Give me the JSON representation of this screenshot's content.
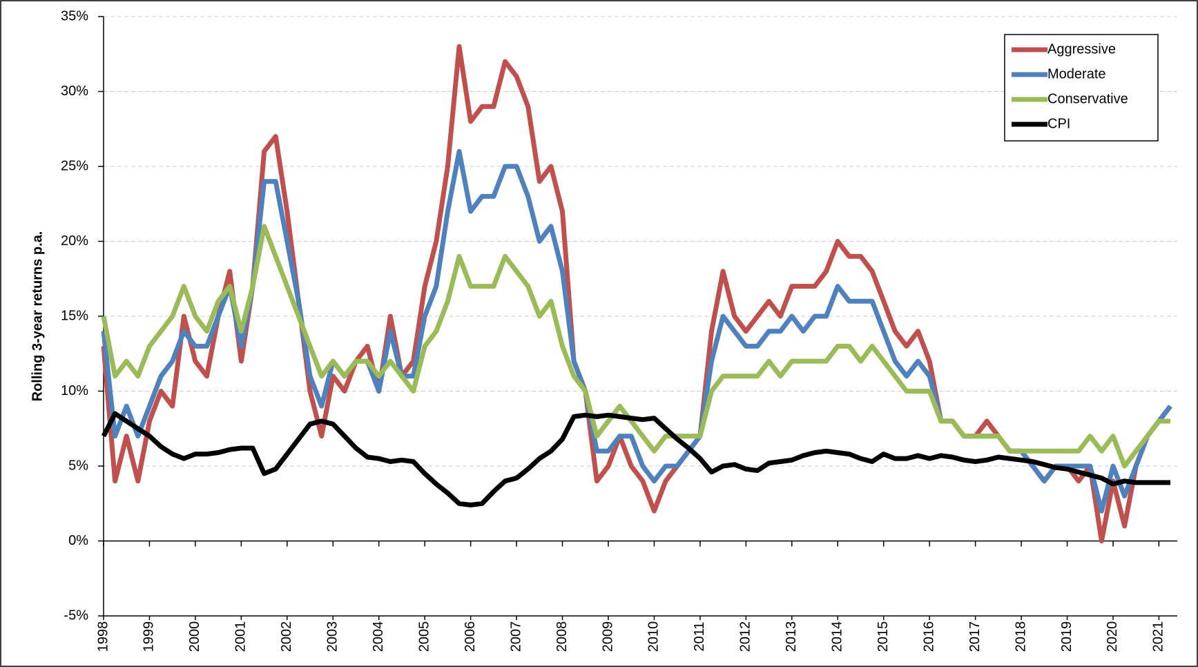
{
  "chart_data": {
    "type": "line",
    "y_label": "Rolling 3-year returns p.a.",
    "ylim": [
      -5,
      35
    ],
    "yticks": [
      {
        "value": -5,
        "label": "-5%"
      },
      {
        "value": 0,
        "label": "0%"
      },
      {
        "value": 5,
        "label": "5%"
      },
      {
        "value": 10,
        "label": "10%"
      },
      {
        "value": 15,
        "label": "15%"
      },
      {
        "value": 20,
        "label": "20%"
      },
      {
        "value": 25,
        "label": "25%"
      },
      {
        "value": 30,
        "label": "30%"
      },
      {
        "value": 35,
        "label": "35%"
      }
    ],
    "xlim": [
      1998,
      2021.4
    ],
    "xticks": [
      1998,
      1999,
      2000,
      2001,
      2002,
      2003,
      2004,
      2005,
      2006,
      2007,
      2008,
      2009,
      2010,
      2011,
      2012,
      2013,
      2014,
      2015,
      2016,
      2017,
      2018,
      2019,
      2020,
      2021
    ],
    "grid": true,
    "legend": "top-right",
    "x": [
      1998,
      1998.25,
      1998.5,
      1998.75,
      1999,
      1999.25,
      1999.5,
      1999.75,
      2000,
      2000.25,
      2000.5,
      2000.75,
      2001,
      2001.25,
      2001.5,
      2001.75,
      2002,
      2002.25,
      2002.5,
      2002.75,
      2003,
      2003.25,
      2003.5,
      2003.75,
      2004,
      2004.25,
      2004.5,
      2004.75,
      2005,
      2005.25,
      2005.5,
      2005.75,
      2006,
      2006.25,
      2006.5,
      2006.75,
      2007,
      2007.25,
      2007.5,
      2007.75,
      2008,
      2008.25,
      2008.5,
      2008.75,
      2009,
      2009.25,
      2009.5,
      2009.75,
      2010,
      2010.25,
      2010.5,
      2010.75,
      2011,
      2011.25,
      2011.5,
      2011.75,
      2012,
      2012.25,
      2012.5,
      2012.75,
      2013,
      2013.25,
      2013.5,
      2013.75,
      2014,
      2014.25,
      2014.5,
      2014.75,
      2015,
      2015.25,
      2015.5,
      2015.75,
      2016,
      2016.25,
      2016.5,
      2016.75,
      2017,
      2017.25,
      2017.5,
      2017.75,
      2018,
      2018.25,
      2018.5,
      2018.75,
      2019,
      2019.25,
      2019.5,
      2019.75,
      2020,
      2020.25,
      2020.5,
      2020.75,
      2021,
      2021.25
    ],
    "series": [
      {
        "name": "Aggressive",
        "color": "#c0504d",
        "values": [
          13,
          4,
          7,
          4,
          8,
          10,
          9,
          15,
          12,
          11,
          15,
          18,
          12,
          17,
          26,
          27,
          22,
          16,
          10,
          7,
          11,
          10,
          12,
          13,
          10,
          15,
          11,
          12,
          17,
          20,
          25,
          33,
          28,
          29,
          29,
          32,
          31,
          29,
          24,
          25,
          22,
          12,
          10,
          4,
          5,
          7,
          5,
          4,
          2,
          4,
          5,
          6,
          7,
          14,
          18,
          15,
          14,
          15,
          16,
          15,
          17,
          17,
          17,
          18,
          20,
          19,
          19,
          18,
          16,
          14,
          13,
          14,
          12,
          8,
          8,
          7,
          7,
          8,
          7,
          6,
          6,
          5,
          4,
          5,
          5,
          4,
          5,
          0,
          4,
          1,
          5,
          7,
          8,
          9
        ]
      },
      {
        "name": "Moderate",
        "color": "#4f81bd",
        "values": [
          14,
          7,
          9,
          7,
          9,
          11,
          12,
          14,
          13,
          13,
          15,
          17,
          13,
          17,
          24,
          24,
          20,
          16,
          11,
          9,
          12,
          11,
          12,
          12,
          10,
          14,
          11,
          11,
          15,
          17,
          22,
          26,
          22,
          23,
          23,
          25,
          25,
          23,
          20,
          21,
          18,
          12,
          10,
          6,
          6,
          7,
          7,
          5,
          4,
          5,
          5,
          6,
          7,
          12,
          15,
          14,
          13,
          13,
          14,
          14,
          15,
          14,
          15,
          15,
          17,
          16,
          16,
          16,
          14,
          12,
          11,
          12,
          11,
          8,
          8,
          7,
          7,
          7,
          7,
          6,
          6,
          5,
          4,
          5,
          5,
          5,
          5,
          2,
          5,
          3,
          5,
          7,
          8,
          9
        ]
      },
      {
        "name": "Conservative",
        "color": "#9bbb59",
        "values": [
          15,
          11,
          12,
          11,
          13,
          14,
          15,
          17,
          15,
          14,
          16,
          17,
          14,
          17,
          21,
          19,
          17,
          15,
          13,
          11,
          12,
          11,
          12,
          12,
          11,
          12,
          11,
          10,
          13,
          14,
          16,
          19,
          17,
          17,
          17,
          19,
          18,
          17,
          15,
          16,
          13,
          11,
          10,
          7,
          8,
          9,
          8,
          7,
          6,
          7,
          7,
          7,
          7,
          10,
          11,
          11,
          11,
          11,
          12,
          11,
          12,
          12,
          12,
          12,
          13,
          13,
          12,
          13,
          12,
          11,
          10,
          10,
          10,
          8,
          8,
          7,
          7,
          7,
          7,
          6,
          6,
          6,
          6,
          6,
          6,
          6,
          7,
          6,
          7,
          5,
          6,
          7,
          8,
          8
        ]
      },
      {
        "name": "CPI",
        "color": "#000000",
        "values": [
          7,
          8.5,
          8,
          7.5,
          7,
          6.3,
          5.8,
          5.5,
          5.8,
          5.8,
          5.9,
          6.1,
          6.2,
          6.2,
          4.5,
          4.8,
          5.8,
          6.8,
          7.8,
          8,
          7.8,
          7,
          6.2,
          5.6,
          5.5,
          5.3,
          5.4,
          5.3,
          4.5,
          3.8,
          3.2,
          2.5,
          2.4,
          2.5,
          3.3,
          4,
          4.2,
          4.8,
          5.5,
          6,
          6.8,
          8.3,
          8.4,
          8.3,
          8.4,
          8.3,
          8.2,
          8.1,
          8.2,
          7.5,
          6.8,
          6.2,
          5.5,
          4.6,
          5,
          5.1,
          4.8,
          4.7,
          5.2,
          5.3,
          5.4,
          5.7,
          5.9,
          6,
          5.9,
          5.8,
          5.5,
          5.3,
          5.8,
          5.5,
          5.5,
          5.7,
          5.5,
          5.7,
          5.6,
          5.4,
          5.3,
          5.4,
          5.6,
          5.5,
          5.4,
          5.3,
          5.1,
          4.9,
          4.8,
          4.6,
          4.4,
          4.2,
          3.8,
          4,
          3.9,
          3.9,
          3.9,
          3.9
        ]
      }
    ]
  }
}
